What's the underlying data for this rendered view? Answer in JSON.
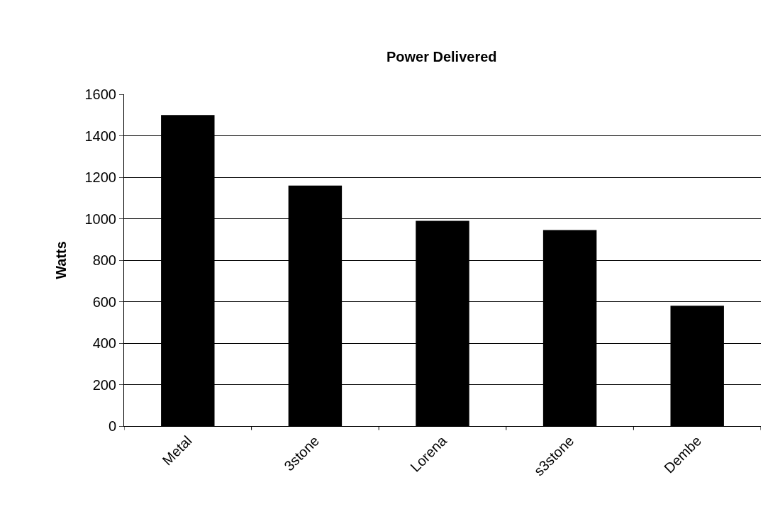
{
  "chart_data": {
    "type": "bar",
    "title": "Power Delivered",
    "ylabel": "Watts",
    "categories": [
      "Metal",
      "3stone",
      "Lorena",
      "s3stone",
      "Dembe"
    ],
    "values": [
      1500,
      1160,
      990,
      945,
      580
    ],
    "color": "#000000",
    "ylim": [
      0,
      1600
    ],
    "yticks": [
      0,
      200,
      400,
      600,
      800,
      1000,
      1200,
      1400,
      1600
    ],
    "grid": "y",
    "legend": false
  }
}
